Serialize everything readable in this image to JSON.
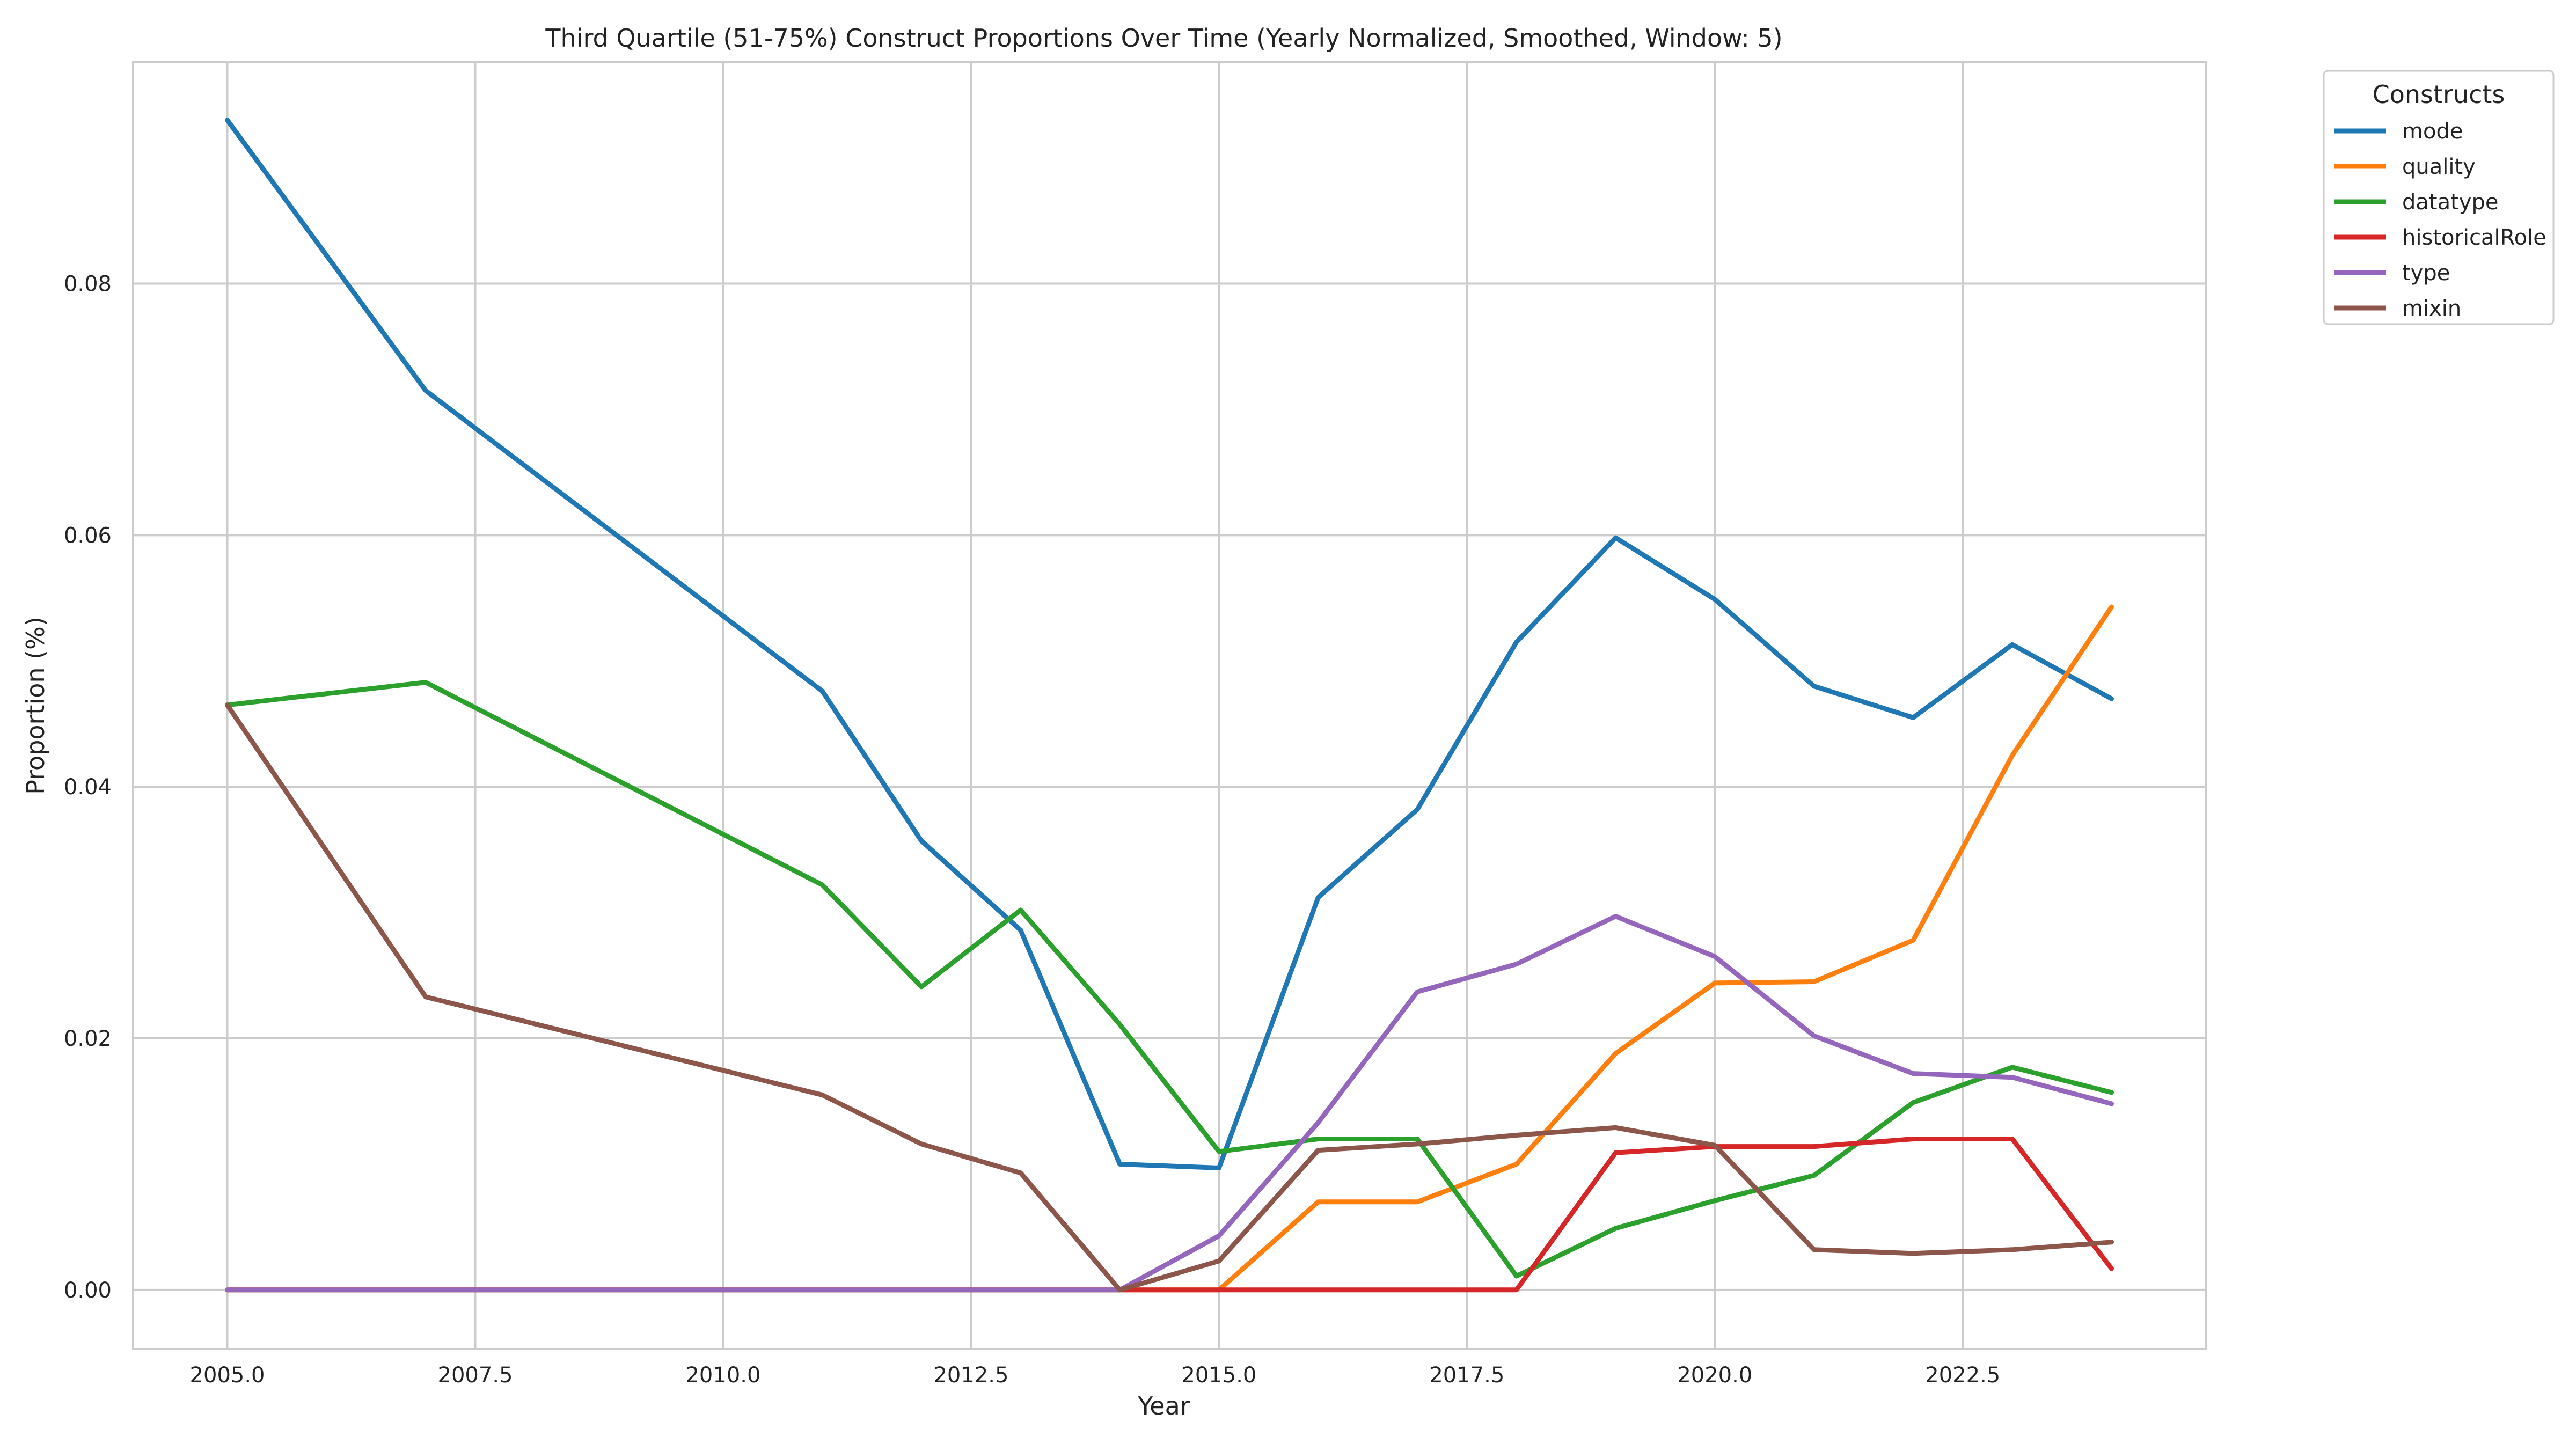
{
  "chart_data": {
    "type": "line",
    "title": "Third Quartile (51-75%) Construct Proportions Over Time (Yearly Normalized, Smoothed, Window: 5)",
    "xlabel": "Year",
    "ylabel": "Proportion (%)",
    "xlim": [
      2004.05,
      2024.95
    ],
    "ylim": [
      -0.0047,
      0.0976
    ],
    "x_ticks": [
      2005.0,
      2007.5,
      2010.0,
      2012.5,
      2015.0,
      2017.5,
      2020.0,
      2022.5
    ],
    "x_tick_labels": [
      "2005.0",
      "2007.5",
      "2010.0",
      "2012.5",
      "2015.0",
      "2017.5",
      "2020.0",
      "2022.5"
    ],
    "y_ticks": [
      0.0,
      0.02,
      0.04,
      0.06,
      0.08
    ],
    "y_tick_labels": [
      "0.00",
      "0.02",
      "0.04",
      "0.06",
      "0.08"
    ],
    "grid": true,
    "legend_title": "Constructs",
    "legend_position": "outside-top-right",
    "series": [
      {
        "name": "mode",
        "color": "#1f77b4",
        "x": [
          2005,
          2007,
          2011,
          2012,
          2013,
          2014,
          2015,
          2016,
          2017,
          2018,
          2019,
          2020,
          2021,
          2022,
          2023,
          2024
        ],
        "y": [
          0.093,
          0.0715,
          0.0476,
          0.0357,
          0.0286,
          0.01,
          0.0097,
          0.0312,
          0.0382,
          0.0515,
          0.0598,
          0.0549,
          0.048,
          0.0455,
          0.0513,
          0.047
        ]
      },
      {
        "name": "quality",
        "color": "#ff7f0e",
        "x": [
          2005,
          2007,
          2011,
          2012,
          2013,
          2014,
          2015,
          2016,
          2017,
          2018,
          2019,
          2020,
          2021,
          2022,
          2023,
          2024
        ],
        "y": [
          0,
          0,
          0,
          0,
          0,
          0,
          0,
          0.007,
          0.007,
          0.01,
          0.0188,
          0.0244,
          0.0245,
          0.0278,
          0.0425,
          0.0543
        ]
      },
      {
        "name": "datatype",
        "color": "#2ca02c",
        "x": [
          2005,
          2007,
          2011,
          2012,
          2013,
          2014,
          2015,
          2016,
          2017,
          2018,
          2019,
          2020,
          2021,
          2022,
          2023,
          2024
        ],
        "y": [
          0.0465,
          0.0483,
          0.0322,
          0.0241,
          0.0302,
          0.0211,
          0.011,
          0.012,
          0.012,
          0.0011,
          0.0049,
          0.0071,
          0.0091,
          0.0149,
          0.0177,
          0.0157
        ]
      },
      {
        "name": "historicalRole",
        "color": "#d62728",
        "x": [
          2005,
          2007,
          2011,
          2012,
          2013,
          2014,
          2015,
          2016,
          2017,
          2018,
          2019,
          2020,
          2021,
          2022,
          2023,
          2024
        ],
        "y": [
          0,
          0,
          0,
          0,
          0,
          0,
          0,
          0,
          0,
          0,
          0.0109,
          0.0114,
          0.0114,
          0.012,
          0.012,
          0.0017
        ]
      },
      {
        "name": "type",
        "color": "#9467bd",
        "x": [
          2005,
          2007,
          2011,
          2012,
          2013,
          2014,
          2015,
          2016,
          2017,
          2018,
          2019,
          2020,
          2021,
          2022,
          2023,
          2024
        ],
        "y": [
          0,
          0,
          0,
          0,
          0,
          0,
          0.0043,
          0.0133,
          0.0237,
          0.0259,
          0.0297,
          0.0265,
          0.0202,
          0.0172,
          0.0169,
          0.0148
        ]
      },
      {
        "name": "mixin",
        "color": "#8c564b",
        "x": [
          2005,
          2007,
          2011,
          2012,
          2013,
          2014,
          2015,
          2016,
          2017,
          2018,
          2019,
          2020,
          2021,
          2022,
          2023,
          2024
        ],
        "y": [
          0.0465,
          0.0233,
          0.0155,
          0.0116,
          0.0093,
          0,
          0.0023,
          0.0111,
          0.0116,
          0.0123,
          0.0129,
          0.0115,
          0.0032,
          0.0029,
          0.0032,
          0.0038
        ]
      }
    ]
  }
}
